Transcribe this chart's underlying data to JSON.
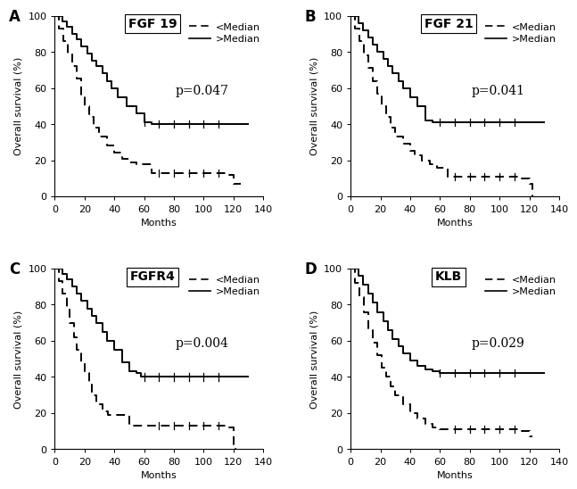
{
  "panels": [
    {
      "label": "A",
      "title": "FGF 19",
      "pvalue": "p=0.047",
      "above_median": {
        "x": [
          0,
          5,
          8,
          12,
          15,
          18,
          22,
          25,
          28,
          32,
          35,
          38,
          42,
          48,
          55,
          60,
          65,
          120,
          130
        ],
        "y": [
          100,
          97,
          94,
          90,
          87,
          83,
          79,
          75,
          72,
          68,
          64,
          60,
          55,
          50,
          46,
          41,
          40,
          40,
          40
        ]
      },
      "below_median": {
        "x": [
          0,
          3,
          6,
          9,
          12,
          15,
          18,
          20,
          23,
          26,
          30,
          35,
          40,
          45,
          50,
          55,
          65,
          70,
          80,
          90,
          100,
          110,
          115,
          120,
          125
        ],
        "y": [
          100,
          93,
          86,
          79,
          72,
          65,
          56,
          50,
          44,
          38,
          33,
          28,
          24,
          21,
          19,
          18,
          13,
          13,
          13,
          13,
          13,
          13,
          12,
          7,
          7
        ]
      }
    },
    {
      "label": "B",
      "title": "FGF 21",
      "pvalue": "p=0.041",
      "above_median": {
        "x": [
          0,
          5,
          8,
          12,
          15,
          18,
          22,
          25,
          28,
          32,
          35,
          40,
          45,
          50,
          55,
          120,
          130
        ],
        "y": [
          100,
          96,
          92,
          88,
          84,
          80,
          76,
          72,
          68,
          64,
          60,
          55,
          50,
          42,
          41,
          41,
          41
        ]
      },
      "below_median": {
        "x": [
          0,
          3,
          6,
          9,
          12,
          15,
          18,
          21,
          24,
          27,
          30,
          35,
          40,
          43,
          48,
          53,
          58,
          65,
          70,
          80,
          90,
          100,
          110,
          115,
          120,
          122
        ],
        "y": [
          100,
          93,
          86,
          78,
          71,
          64,
          57,
          50,
          44,
          38,
          33,
          29,
          25,
          23,
          20,
          18,
          16,
          11,
          11,
          11,
          11,
          11,
          11,
          10,
          7,
          0
        ]
      }
    },
    {
      "label": "C",
      "title": "FGFR4",
      "pvalue": "p=0.004",
      "above_median": {
        "x": [
          0,
          5,
          8,
          12,
          15,
          18,
          22,
          25,
          28,
          32,
          35,
          40,
          45,
          50,
          55,
          58,
          65,
          120,
          130
        ],
        "y": [
          100,
          97,
          94,
          90,
          86,
          82,
          78,
          74,
          70,
          65,
          60,
          55,
          48,
          43,
          42,
          40,
          40,
          40,
          40
        ]
      },
      "below_median": {
        "x": [
          0,
          3,
          5,
          8,
          10,
          13,
          15,
          18,
          20,
          23,
          25,
          28,
          32,
          36,
          40,
          50,
          55,
          65,
          70,
          80,
          90,
          100,
          110,
          115,
          120,
          122
        ],
        "y": [
          100,
          93,
          86,
          78,
          70,
          62,
          55,
          48,
          42,
          36,
          30,
          25,
          21,
          19,
          19,
          13,
          13,
          13,
          13,
          13,
          13,
          13,
          13,
          12,
          0,
          0
        ]
      }
    },
    {
      "label": "D",
      "title": "KLB",
      "pvalue": "p=0.029",
      "above_median": {
        "x": [
          0,
          5,
          8,
          12,
          15,
          18,
          22,
          25,
          28,
          32,
          35,
          40,
          45,
          50,
          55,
          60,
          65,
          120,
          130
        ],
        "y": [
          100,
          96,
          91,
          86,
          81,
          76,
          71,
          66,
          61,
          57,
          53,
          49,
          46,
          44,
          43,
          42,
          42,
          42,
          42
        ]
      },
      "below_median": {
        "x": [
          0,
          3,
          6,
          9,
          12,
          15,
          18,
          21,
          24,
          27,
          30,
          35,
          40,
          45,
          50,
          55,
          60,
          70,
          80,
          90,
          100,
          110,
          115,
          120,
          122
        ],
        "y": [
          100,
          92,
          84,
          76,
          67,
          59,
          52,
          45,
          40,
          35,
          30,
          25,
          20,
          17,
          14,
          12,
          11,
          11,
          11,
          11,
          11,
          11,
          10,
          7,
          7
        ]
      }
    }
  ],
  "xlim": [
    0,
    140
  ],
  "ylim": [
    0,
    100
  ],
  "xticks": [
    0,
    20,
    40,
    60,
    80,
    100,
    120,
    140
  ],
  "yticks": [
    0,
    20,
    40,
    60,
    80,
    100
  ],
  "xlabel": "Months",
  "ylabel": "Overall survival (%)",
  "above_color": "#000000",
  "below_color": "#000000",
  "above_linestyle": "-",
  "below_linestyle": "--",
  "above_label": ">Median",
  "below_label": "<Median",
  "pvalue_fontsize": 10,
  "title_fontsize": 10,
  "label_fontsize": 12,
  "tick_fontsize": 8,
  "axis_label_fontsize": 8,
  "legend_fontsize": 8,
  "censoring_above": [
    60,
    70,
    80,
    90,
    100,
    110
  ],
  "censoring_below_A": [
    70,
    80,
    90,
    100,
    110
  ],
  "censoring_below_B": [
    70,
    80,
    90,
    100,
    110
  ],
  "censoring_below_C": [
    70,
    80,
    90,
    100,
    110
  ],
  "censoring_below_D": [
    70,
    80,
    90,
    100,
    110
  ]
}
